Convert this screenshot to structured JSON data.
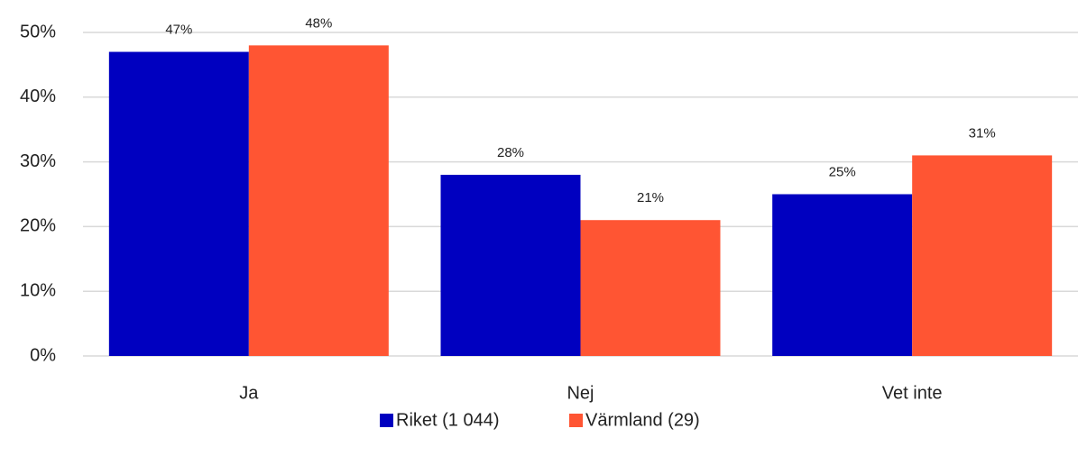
{
  "chart_data": {
    "type": "bar",
    "categories": [
      "Ja",
      "Nej",
      "Vet inte"
    ],
    "series": [
      {
        "name": "Riket (1 044)",
        "color": "#0000c0",
        "values": [
          47,
          28,
          25
        ],
        "value_labels": [
          "47%",
          "28%",
          "25%"
        ]
      },
      {
        "name": "Värmland (29)",
        "color": "#ff5533",
        "values": [
          48,
          21,
          31
        ],
        "value_labels": [
          "48%",
          "21%",
          "31%"
        ]
      }
    ],
    "ylim": [
      0,
      50
    ],
    "yticks": [
      {
        "value": 0,
        "label": "0%"
      },
      {
        "value": 10,
        "label": "10%"
      },
      {
        "value": 20,
        "label": "20%"
      },
      {
        "value": 30,
        "label": "30%"
      },
      {
        "value": 40,
        "label": "40%"
      },
      {
        "value": 50,
        "label": "50%"
      }
    ],
    "grid": true,
    "legend": "bottom"
  }
}
